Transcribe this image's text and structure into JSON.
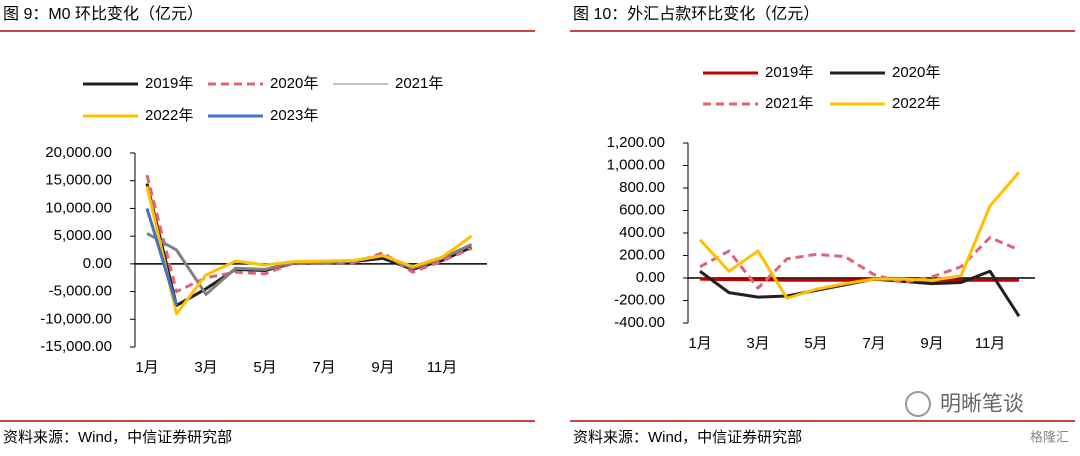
{
  "chart_data": [
    {
      "type": "line",
      "title": "图 9：M0 环比变化（亿元）",
      "source": "资料来源：Wind，中信证券研究部",
      "categories": [
        "1月",
        null,
        "3月",
        null,
        "5月",
        null,
        "7月",
        null,
        "9月",
        null,
        "11月",
        null
      ],
      "ylim": [
        -15000,
        20000
      ],
      "yticks": [
        {
          "value": -15000,
          "label": "-15,000.00"
        },
        {
          "value": -10000,
          "label": "-10,000.00"
        },
        {
          "value": -5000,
          "label": "-5,000.00"
        },
        {
          "value": 0,
          "label": "0.00"
        },
        {
          "value": 5000,
          "label": "5,000.00"
        },
        {
          "value": 10000,
          "label": "10,000.00"
        },
        {
          "value": 15000,
          "label": "15,000.00"
        },
        {
          "value": 20000,
          "label": "20,000.00"
        }
      ],
      "series": [
        {
          "name": "2019年",
          "color": "#231f20",
          "values": [
            14500,
            -7500,
            -4500,
            -1000,
            -1200,
            200,
            300,
            400,
            1000,
            -1000,
            600,
            3000
          ]
        },
        {
          "name": "2020年",
          "color": "#e06377",
          "linestyle": "dashed",
          "values": [
            16000,
            -5000,
            -2500,
            -1500,
            -1800,
            200,
            200,
            200,
            2000,
            -1500,
            500,
            2800
          ]
        },
        {
          "name": "2021年",
          "color": "#808080",
          "values": [
            5500,
            2500,
            -5500,
            -800,
            -1000,
            300,
            200,
            500,
            1500,
            -800,
            1000,
            3500
          ]
        },
        {
          "name": "2022年",
          "color": "#ffc000",
          "values": [
            14000,
            -9000,
            -2000,
            500,
            -200,
            400,
            500,
            600,
            1500,
            -500,
            1200,
            5000
          ]
        },
        {
          "name": "2023年",
          "color": "#4472c4",
          "values": [
            10000,
            -7500,
            null,
            null,
            null,
            null,
            null,
            null,
            null,
            null,
            null,
            null
          ]
        }
      ]
    },
    {
      "type": "line",
      "title": "图 10：外汇占款环比变化（亿元）",
      "source": "资料来源：Wind，中信证券研究部",
      "categories": [
        "1月",
        null,
        "3月",
        null,
        "5月",
        null,
        "7月",
        null,
        "9月",
        null,
        "11月",
        null
      ],
      "ylim": [
        -400,
        1200
      ],
      "yticks": [
        {
          "value": -400,
          "label": "-400.00"
        },
        {
          "value": -200,
          "label": "-200.00"
        },
        {
          "value": 0,
          "label": "0.00"
        },
        {
          "value": 200,
          "label": "200.00"
        },
        {
          "value": 400,
          "label": "400.00"
        },
        {
          "value": 600,
          "label": "600.00"
        },
        {
          "value": 800,
          "label": "800.00"
        },
        {
          "value": 1000,
          "label": "1,000.00"
        },
        {
          "value": 1200,
          "label": "1,200.00"
        }
      ],
      "series": [
        {
          "name": "2019年",
          "color": "#c00000",
          "values": [
            -10,
            -15,
            -15,
            -20,
            -20,
            -20,
            -10,
            -20,
            -20,
            -20,
            -20,
            -20
          ]
        },
        {
          "name": "2020年",
          "color": "#231f20",
          "values": [
            60,
            -130,
            -170,
            -160,
            -110,
            -60,
            -10,
            -30,
            -50,
            -40,
            60,
            -340
          ]
        },
        {
          "name": "2021年",
          "color": "#e06377",
          "linestyle": "dashed",
          "values": [
            100,
            240,
            -90,
            170,
            210,
            190,
            30,
            -40,
            10,
            100,
            360,
            250
          ]
        },
        {
          "name": "2022年",
          "color": "#ffc000",
          "values": [
            340,
            60,
            240,
            -180,
            -100,
            -50,
            -10,
            -10,
            -20,
            20,
            640,
            940
          ]
        }
      ]
    }
  ],
  "watermark": "明晰笔谈",
  "logo": "格隆汇"
}
